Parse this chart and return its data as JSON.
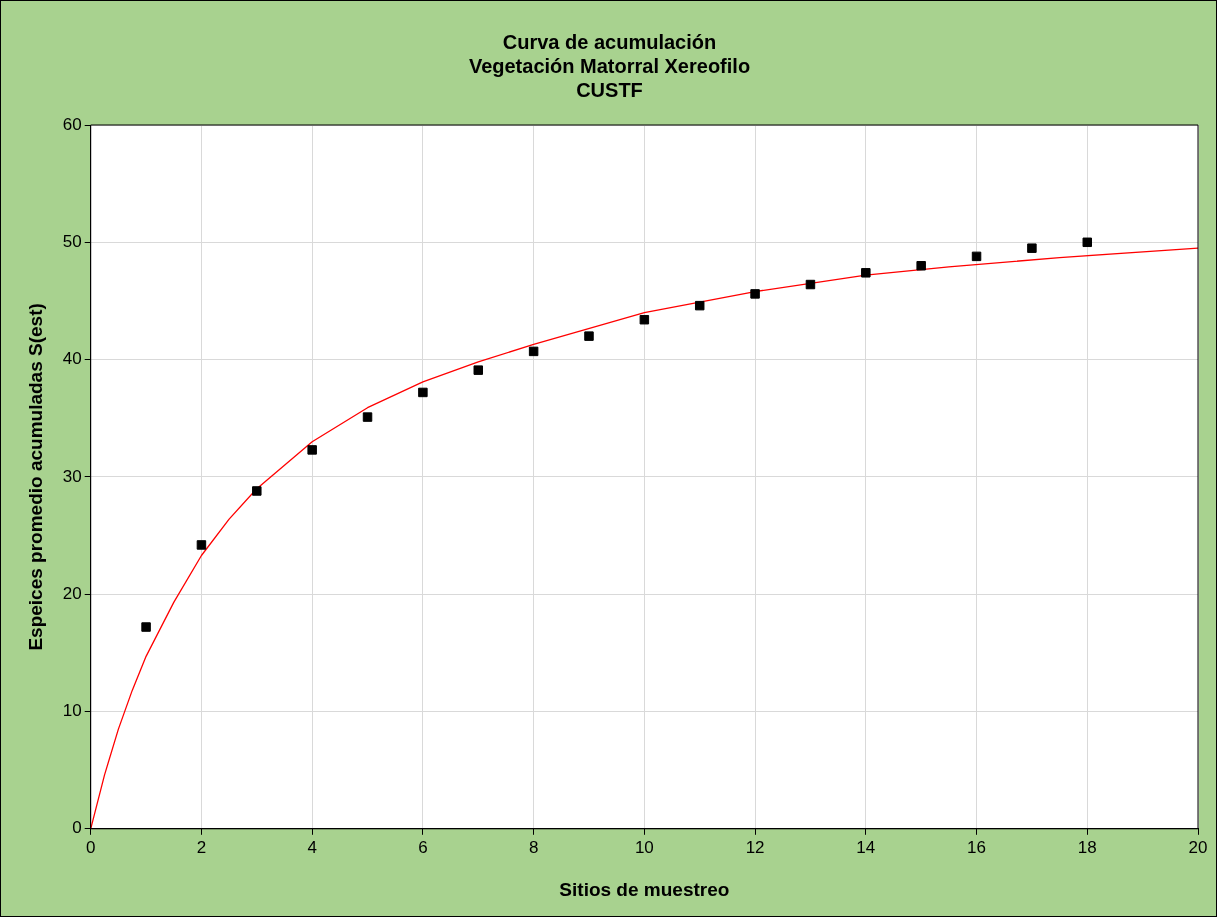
{
  "chart_data": {
    "type": "scatter",
    "title": "Curva de acumulación\nVegetación Matorral Xereofilo\nCUSTF",
    "xlabel": "Sitios de muestreo",
    "ylabel": "Espeices promedio acumuladas S(est)",
    "xlim": [
      0,
      20
    ],
    "xticks": [
      0,
      2,
      4,
      6,
      8,
      10,
      12,
      14,
      16,
      18,
      20
    ],
    "ylim": [
      0,
      60
    ],
    "yticks": [
      0,
      10,
      20,
      30,
      40,
      50,
      60
    ],
    "grid": true,
    "legend": false,
    "series": [
      {
        "type": "scatter",
        "marker": "square",
        "color": "#000000",
        "x": [
          1,
          2,
          3,
          4,
          5,
          6,
          7,
          8,
          9,
          10,
          11,
          12,
          13,
          14,
          15,
          16,
          17,
          18
        ],
        "values": [
          17.2,
          24.2,
          28.8,
          32.3,
          35.1,
          37.2,
          39.1,
          40.7,
          42.0,
          43.4,
          44.6,
          45.6,
          46.4,
          47.4,
          48.0,
          48.8,
          49.5,
          50.0
        ]
      },
      {
        "type": "line",
        "marker": "none",
        "color": "#ff0000",
        "x": [
          0,
          0.25,
          0.5,
          0.75,
          1,
          1.5,
          2,
          2.5,
          3,
          4,
          5,
          6,
          7,
          8,
          10,
          12,
          14,
          15.5,
          17.5,
          20
        ],
        "values": [
          0,
          4.6,
          8.5,
          11.8,
          14.7,
          19.3,
          23.3,
          26.4,
          29.0,
          33.0,
          35.9,
          38.1,
          39.8,
          41.3,
          44.0,
          45.8,
          47.2,
          47.9,
          48.7,
          49.5
        ]
      }
    ]
  }
}
